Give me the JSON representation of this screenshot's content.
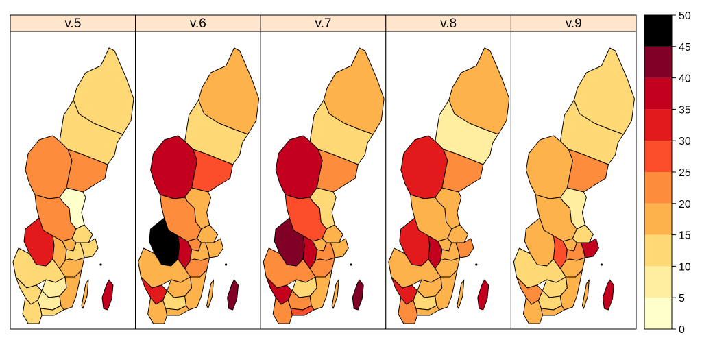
{
  "panels": [
    {
      "label": "v.5",
      "regions": {
        "norrbotten": 10,
        "vasterbotten": 10,
        "jamtland": 20,
        "vasternorrland": 20,
        "gavleborg": 3,
        "dalarna": 20,
        "varmland": 30,
        "orebro": 15,
        "vastmanland": 15,
        "uppsala": 12,
        "stockholm": 12,
        "sodermanland": 12,
        "ostergotland": 15,
        "vastragotaland": 12,
        "jonkoping": 8,
        "kronoberg": 8,
        "kalmar": 15,
        "gotland": 35,
        "halland": 12,
        "blekinge": 12,
        "skane": 10
      }
    },
    {
      "label": "v.6",
      "regions": {
        "norrbotten": 17,
        "vasterbotten": 12,
        "jamtland": 38,
        "vasternorrland": 28,
        "gavleborg": 17,
        "dalarna": 22,
        "varmland": 48,
        "orebro": 35,
        "vastmanland": 20,
        "uppsala": 15,
        "stockholm": 15,
        "sodermanland": 15,
        "ostergotland": 20,
        "vastragotaland": 18,
        "jonkoping": 15,
        "kronoberg": 12,
        "kalmar": 15,
        "gotland": 43,
        "halland": 30,
        "blekinge": 15,
        "skane": 18
      }
    },
    {
      "label": "v.7",
      "regions": {
        "norrbotten": 17,
        "vasterbotten": 12,
        "jamtland": 38,
        "vasternorrland": 22,
        "gavleborg": 12,
        "dalarna": 28,
        "varmland": 43,
        "orebro": 35,
        "vastmanland": 18,
        "uppsala": 15,
        "stockholm": 15,
        "sodermanland": 20,
        "ostergotland": 20,
        "vastragotaland": 22,
        "jonkoping": 12,
        "kronoberg": 20,
        "kalmar": 15,
        "gotland": 43,
        "halland": 35,
        "blekinge": 28,
        "skane": 22
      }
    },
    {
      "label": "v.8",
      "regions": {
        "norrbotten": 17,
        "vasterbotten": 7,
        "jamtland": 33,
        "vasternorrland": 20,
        "gavleborg": 15,
        "dalarna": 18,
        "varmland": 33,
        "orebro": 38,
        "vastmanland": 15,
        "uppsala": 15,
        "stockholm": 22,
        "sodermanland": 18,
        "ostergotland": 18,
        "vastragotaland": 18,
        "jonkoping": 15,
        "kronoberg": 12,
        "kalmar": 18,
        "gotland": 38,
        "halland": 30,
        "blekinge": 18,
        "skane": 22
      }
    },
    {
      "label": "v.9",
      "regions": {
        "norrbotten": 12,
        "vasterbotten": 12,
        "jamtland": 17,
        "vasternorrland": 20,
        "gavleborg": 8,
        "dalarna": 17,
        "varmland": 18,
        "orebro": 25,
        "vastmanland": 15,
        "uppsala": 12,
        "stockholm": 38,
        "sodermanland": 20,
        "ostergotland": 15,
        "vastragotaland": 12,
        "jonkoping": 12,
        "kronoberg": 12,
        "kalmar": 15,
        "gotland": 38,
        "halland": 20,
        "blekinge": 15,
        "skane": 15
      }
    }
  ],
  "colorbar": {
    "breaks": [
      0,
      5,
      10,
      15,
      20,
      25,
      30,
      35,
      40,
      45,
      50
    ],
    "tick_labels": [
      "0",
      "5",
      "10",
      "15",
      "20",
      "25",
      "30",
      "35",
      "40",
      "45",
      "50"
    ],
    "colors": [
      "#FFFFCC",
      "#FFEDA0",
      "#FED976",
      "#FEB24C",
      "#FD8D3C",
      "#FC4E2A",
      "#E31A1C",
      "#C4001F",
      "#800026",
      "#000000"
    ]
  },
  "strip_color": "#FFE5CC"
}
